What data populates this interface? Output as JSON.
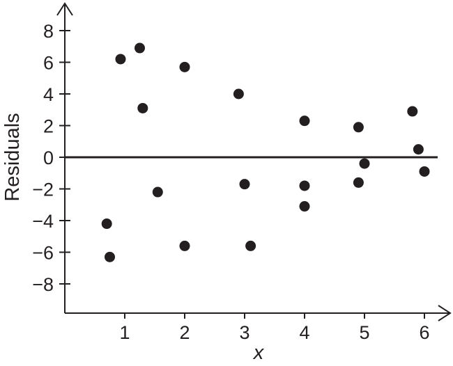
{
  "chart_data": {
    "type": "scatter",
    "xlabel": "x",
    "ylabel": "Residuals",
    "xlim": [
      0,
      6.5
    ],
    "ylim": [
      -9.5,
      9.5
    ],
    "x_ticks": [
      1,
      2,
      3,
      4,
      5,
      6
    ],
    "y_ticks": [
      -8,
      -6,
      -4,
      -2,
      0,
      2,
      4,
      6,
      8
    ],
    "y_tick_labels": [
      "−8",
      "−6",
      "−4",
      "−2",
      "0",
      "2",
      "4",
      "6",
      "8"
    ],
    "reference_line_y": 0,
    "grid": false,
    "color": "#231f20",
    "points": [
      {
        "x": 0.7,
        "y": -4.2
      },
      {
        "x": 0.75,
        "y": -6.3
      },
      {
        "x": 0.93,
        "y": 6.2
      },
      {
        "x": 1.25,
        "y": 6.9
      },
      {
        "x": 1.3,
        "y": 3.1
      },
      {
        "x": 1.55,
        "y": -2.2
      },
      {
        "x": 2.0,
        "y": 5.7
      },
      {
        "x": 2.0,
        "y": -5.6
      },
      {
        "x": 2.9,
        "y": 4.0
      },
      {
        "x": 3.0,
        "y": -1.7
      },
      {
        "x": 3.1,
        "y": -5.6
      },
      {
        "x": 4.0,
        "y": 2.3
      },
      {
        "x": 4.0,
        "y": -1.8
      },
      {
        "x": 4.0,
        "y": -3.1
      },
      {
        "x": 4.9,
        "y": 1.9
      },
      {
        "x": 4.9,
        "y": -1.6
      },
      {
        "x": 5.0,
        "y": -0.4
      },
      {
        "x": 5.8,
        "y": 2.9
      },
      {
        "x": 5.9,
        "y": 0.5
      },
      {
        "x": 6.0,
        "y": -0.9
      }
    ]
  }
}
